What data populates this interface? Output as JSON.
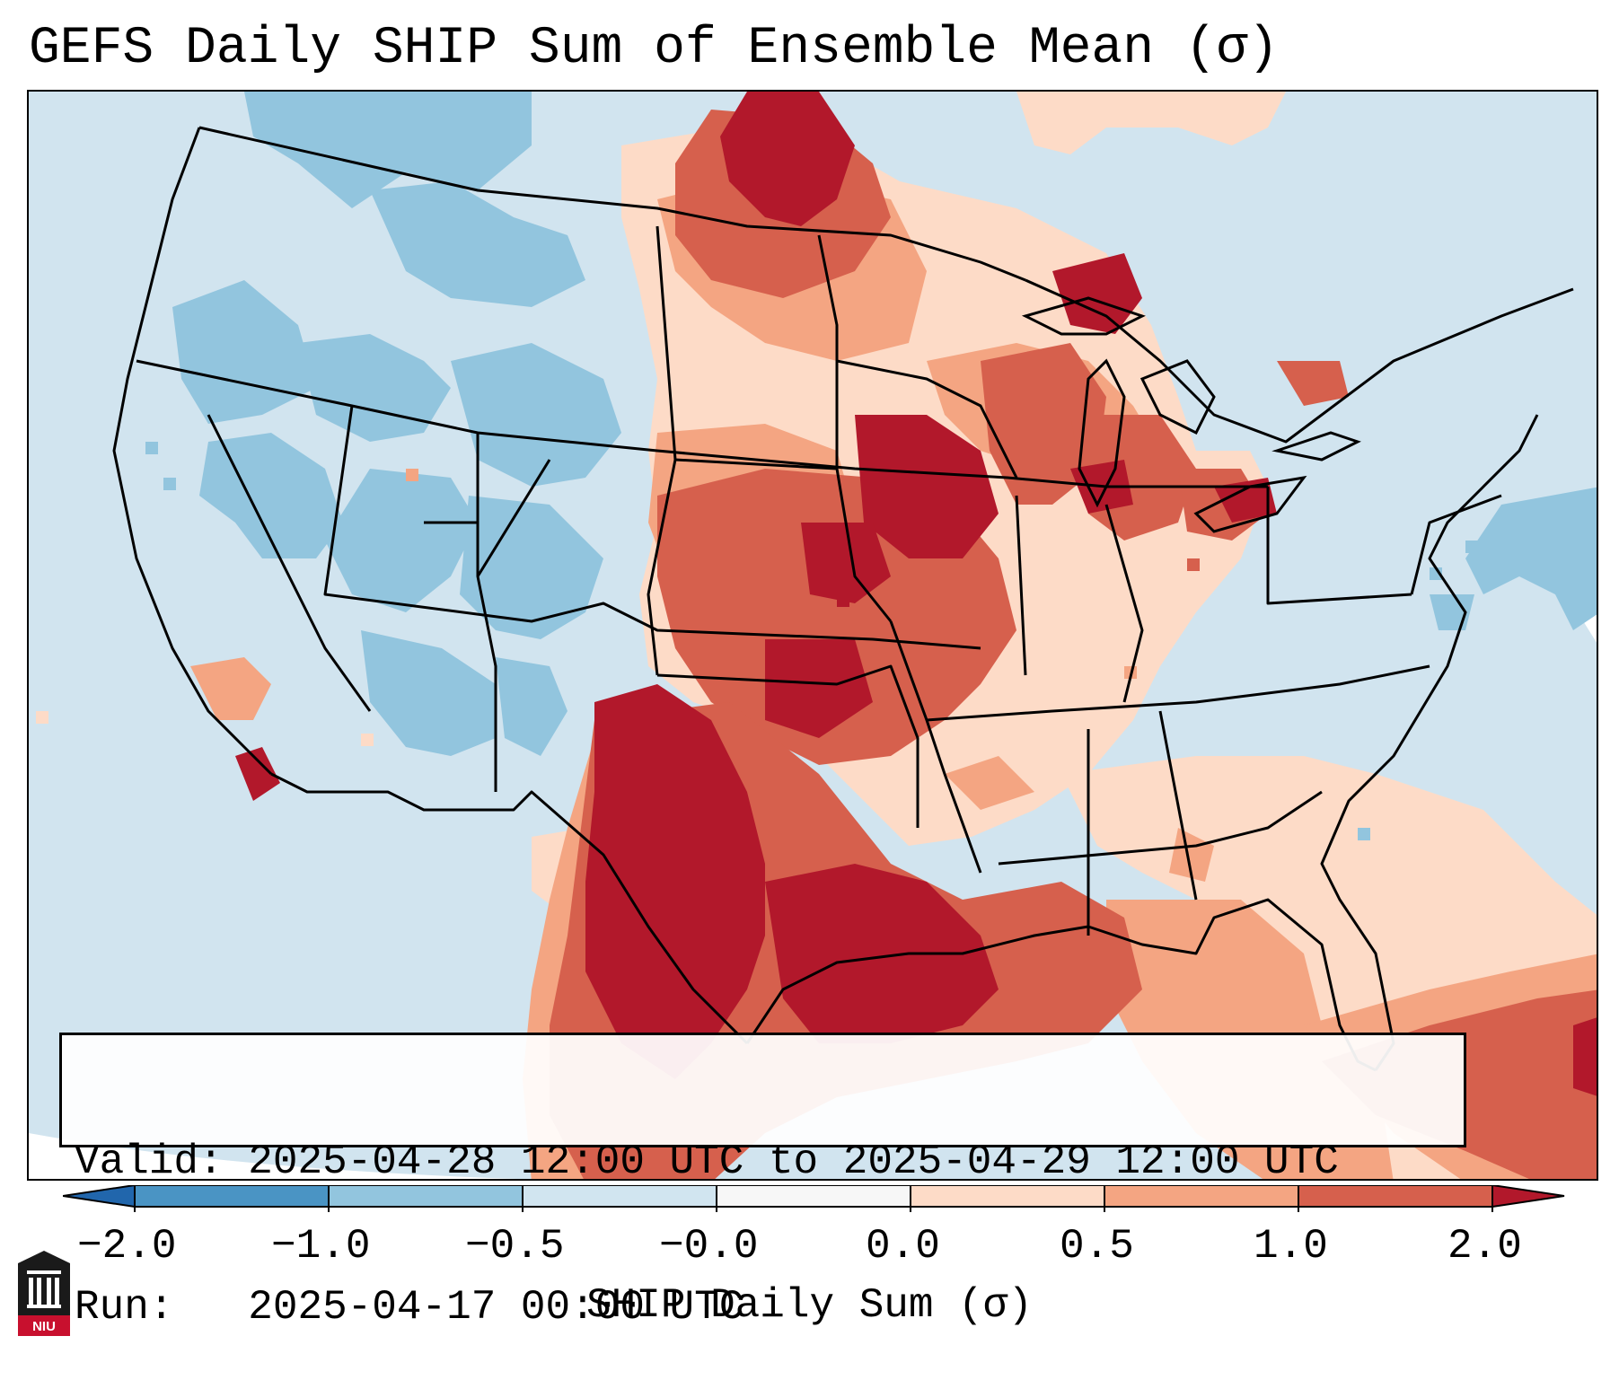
{
  "title": "GEFS Daily SHIP Sum of Ensemble Mean (σ)",
  "info": {
    "valid_label": "Valid:",
    "valid_value": "2025-04-28 12:00 UTC to 2025-04-29 12:00 UTC",
    "run_label": "Run:",
    "run_value": "2025-04-17 00:00 UTC"
  },
  "colorbar": {
    "label": "SHIP Daily Sum (σ)",
    "ticks": [
      "−2.0",
      "−1.0",
      "−0.5",
      "−0.0",
      "0.0",
      "0.5",
      "1.0",
      "2.0"
    ],
    "bins": [
      {
        "range": "−2.0 to −1.0",
        "color": "#4a94c4"
      },
      {
        "range": "−1.0 to −0.5",
        "color": "#92c5de"
      },
      {
        "range": "−0.5 to −0.0",
        "color": "#d1e5f0"
      },
      {
        "range": "−0.0 to 0.0",
        "color": "#f7f7f7"
      },
      {
        "range": "0.0 to 0.5",
        "color": "#fddbc7"
      },
      {
        "range": "0.5 to 1.0",
        "color": "#f4a582"
      },
      {
        "range": "1.0 to 2.0",
        "color": "#d6604d"
      }
    ],
    "under_color": "#2166ac",
    "over_color": "#b2182b"
  },
  "logo": {
    "text": "NIU",
    "icon": "niu-university-logo"
  },
  "map": {
    "projection": "lambert-conformal",
    "region": "CONUS",
    "boundaries": "state and national borders"
  }
}
